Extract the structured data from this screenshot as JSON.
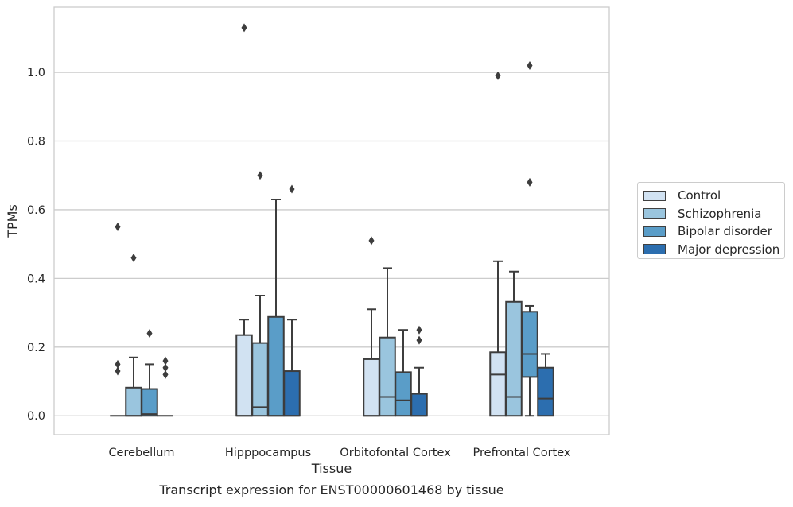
{
  "chart_data": {
    "type": "box",
    "title": "",
    "caption": "Transcript expression for ENST00000601468 by tissue",
    "xlabel": "Tissue",
    "ylabel": "TPMs",
    "categories": [
      "Cerebellum",
      "Hipppocampus",
      "Orbitofontal Cortex",
      "Prefrontal Cortex"
    ],
    "ylim": [
      -0.055,
      1.19
    ],
    "yticks": [
      0.0,
      0.2,
      0.4,
      0.6,
      0.8,
      1.0
    ],
    "ytick_labels": [
      "0.0",
      "0.2",
      "0.4",
      "0.6",
      "0.8",
      "1.0"
    ],
    "grid": true,
    "legend_position": "right, outside the plot",
    "series": [
      {
        "name": "Control",
        "color": "#d1e2f2",
        "boxes": [
          {
            "whislo": 0.0,
            "q1": 0.0,
            "med": 0.0,
            "q3": 0.0,
            "whishi": 0.0,
            "fliers": [
              0.55,
              0.15,
              0.13
            ]
          },
          {
            "whislo": 0.0,
            "q1": 0.0,
            "med": 0.0,
            "q3": 0.235,
            "whishi": 0.28,
            "fliers": [
              1.13
            ]
          },
          {
            "whislo": 0.0,
            "q1": 0.0,
            "med": 0.0,
            "q3": 0.165,
            "whishi": 0.31,
            "fliers": [
              0.51
            ]
          },
          {
            "whislo": 0.0,
            "q1": 0.0,
            "med": 0.12,
            "q3": 0.185,
            "whishi": 0.45,
            "fliers": [
              0.99
            ]
          }
        ]
      },
      {
        "name": "Schizophrenia",
        "color": "#9ac5de",
        "boxes": [
          {
            "whislo": 0.0,
            "q1": 0.0,
            "med": 0.0,
            "q3": 0.082,
            "whishi": 0.17,
            "fliers": [
              0.46
            ]
          },
          {
            "whislo": 0.0,
            "q1": 0.0,
            "med": 0.025,
            "q3": 0.212,
            "whishi": 0.35,
            "fliers": [
              0.7
            ]
          },
          {
            "whislo": 0.0,
            "q1": 0.0,
            "med": 0.055,
            "q3": 0.228,
            "whishi": 0.43,
            "fliers": []
          },
          {
            "whislo": 0.0,
            "q1": 0.0,
            "med": 0.055,
            "q3": 0.332,
            "whishi": 0.42,
            "fliers": []
          }
        ]
      },
      {
        "name": "Bipolar disorder",
        "color": "#5a9dc8",
        "boxes": [
          {
            "whislo": 0.0,
            "q1": 0.0,
            "med": 0.005,
            "q3": 0.078,
            "whishi": 0.15,
            "fliers": [
              0.24
            ]
          },
          {
            "whislo": 0.0,
            "q1": 0.0,
            "med": 0.0,
            "q3": 0.288,
            "whishi": 0.63,
            "fliers": []
          },
          {
            "whislo": 0.0,
            "q1": 0.0,
            "med": 0.045,
            "q3": 0.127,
            "whishi": 0.25,
            "fliers": []
          },
          {
            "whislo": 0.0,
            "q1": 0.113,
            "med": 0.18,
            "q3": 0.303,
            "whishi": 0.32,
            "fliers": [
              1.02,
              0.68
            ]
          }
        ]
      },
      {
        "name": "Major depression",
        "color": "#2c6eaf",
        "boxes": [
          {
            "whislo": 0.0,
            "q1": 0.0,
            "med": 0.0,
            "q3": 0.0,
            "whishi": 0.0,
            "fliers": [
              0.16,
              0.14,
              0.12
            ]
          },
          {
            "whislo": 0.0,
            "q1": 0.0,
            "med": 0.0,
            "q3": 0.13,
            "whishi": 0.28,
            "fliers": [
              0.66
            ]
          },
          {
            "whislo": 0.0,
            "q1": 0.0,
            "med": 0.0,
            "q3": 0.064,
            "whishi": 0.14,
            "fliers": [
              0.25,
              0.22
            ]
          },
          {
            "whislo": 0.0,
            "q1": 0.0,
            "med": 0.05,
            "q3": 0.14,
            "whishi": 0.18,
            "fliers": []
          }
        ]
      }
    ]
  }
}
